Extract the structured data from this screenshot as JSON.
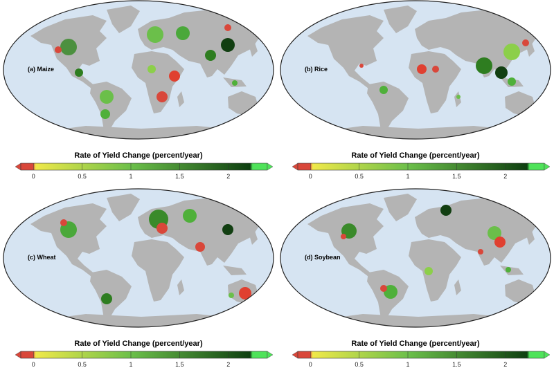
{
  "panels": [
    {
      "label": "(a) Maize",
      "crop": "maize"
    },
    {
      "label": "(b) Rice",
      "crop": "rice"
    },
    {
      "label": "(c) Wheat",
      "crop": "wheat"
    },
    {
      "label": "(d) Soybean",
      "crop": "soybean"
    }
  ],
  "colorbar": {
    "title": "Rate of Yield Change (percent/year)",
    "ticks": [
      "0",
      "0.5",
      "1",
      "1.5",
      "2"
    ],
    "tick_values": [
      0,
      0.5,
      1,
      1.5,
      2
    ],
    "range": [
      -0.13,
      2.4
    ],
    "colors": {
      "below": "#d9473a",
      "low": "#f0e94a",
      "mid": "#6bbf4a",
      "high": "#0e3f10",
      "above": "#4fe35a"
    }
  },
  "colors": {
    "ocean": "#d6e4f2",
    "land": "#b4b4b4",
    "border": "#222222"
  }
}
